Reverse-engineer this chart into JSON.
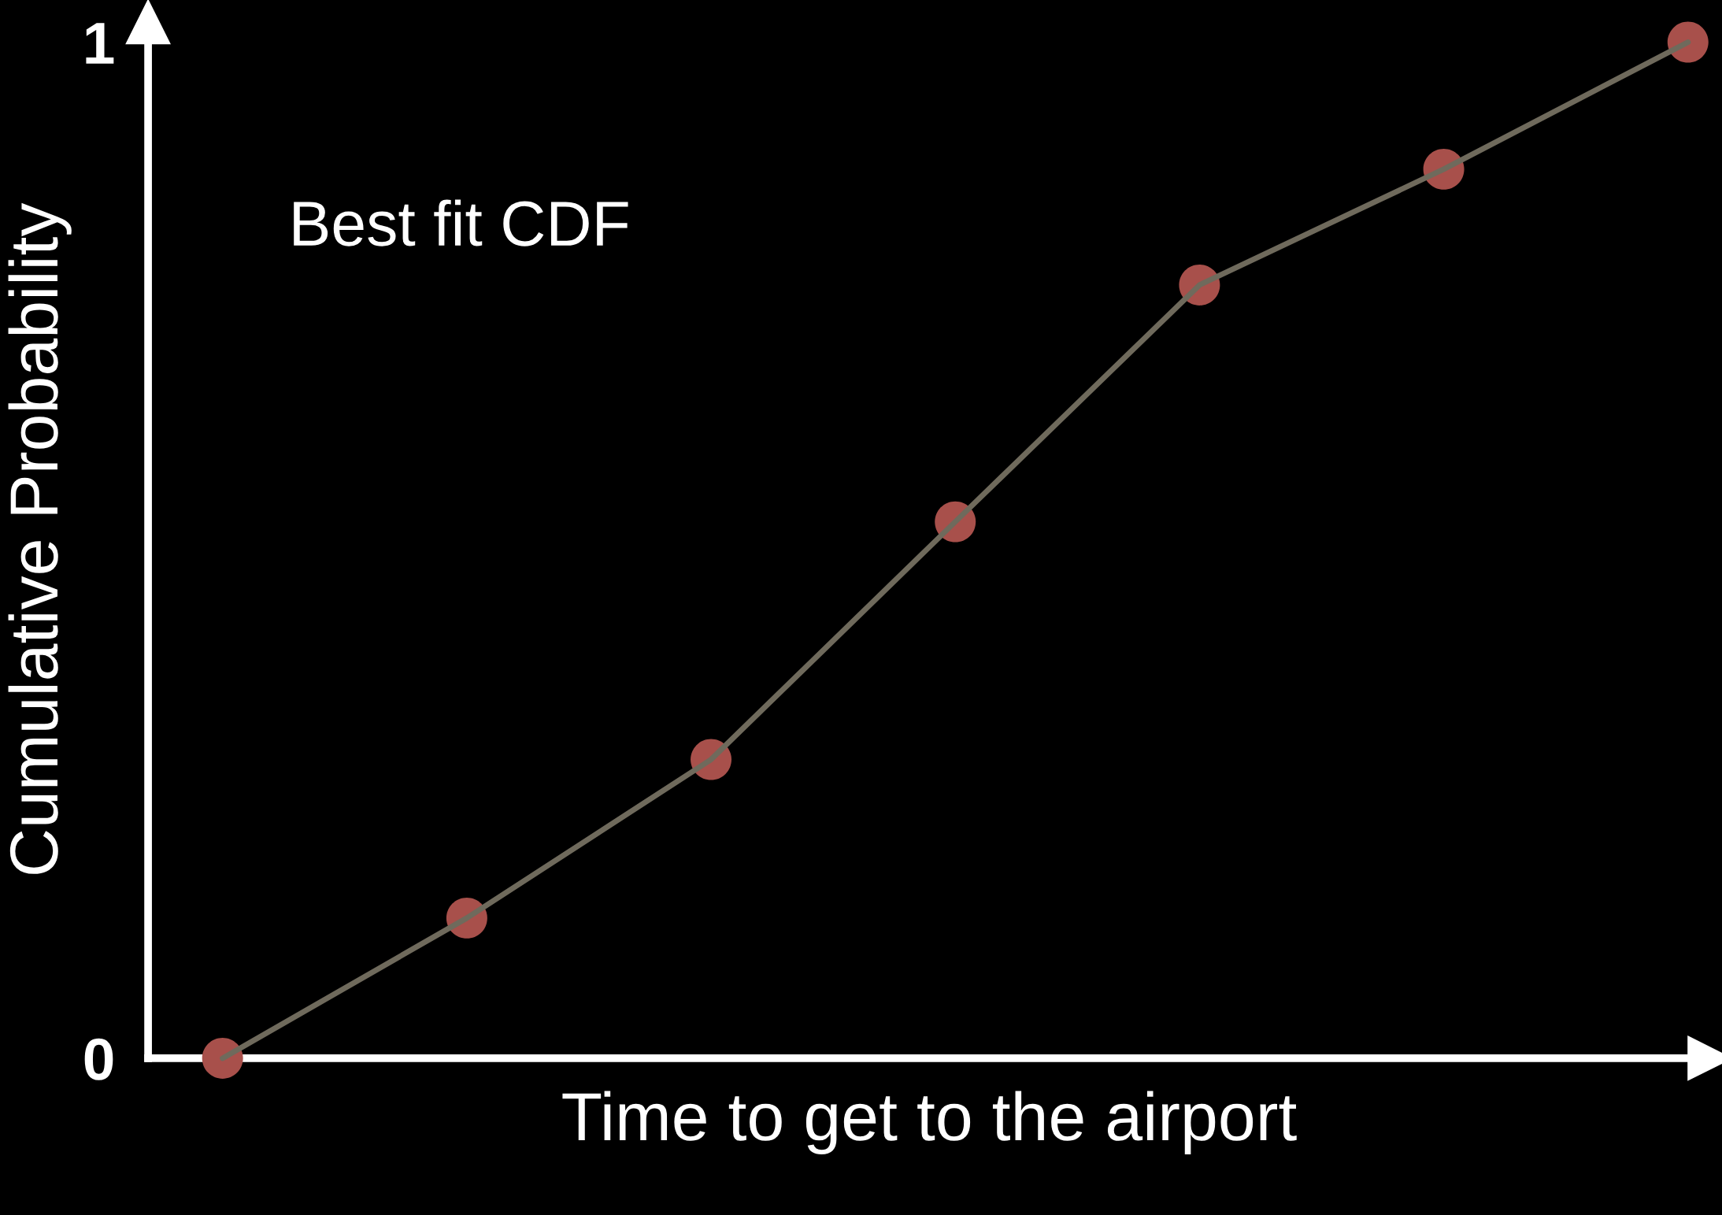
{
  "chart_data": {
    "type": "line",
    "xlabel": "Time to get to the airport",
    "ylabel": "Cumulative Probability",
    "annotations": [
      "Best fit CDF"
    ],
    "categories": [
      null,
      null,
      null,
      null,
      null,
      null,
      null
    ],
    "series": [
      {
        "type": "scatter",
        "color": "#a8504b",
        "values": [
          0,
          0.138,
          0.294,
          0.528,
          0.761,
          0.875,
          1.0
        ]
      },
      {
        "color": "#6f6a5c",
        "values": [
          0,
          0.138,
          0.294,
          0.528,
          0.761,
          0.875,
          1.0
        ]
      }
    ],
    "line_style": "solid",
    "ylim": [
      0,
      1.02
    ],
    "yticks": [
      0,
      1
    ],
    "tick_labels": "y",
    "grid": false,
    "legend": false
  }
}
